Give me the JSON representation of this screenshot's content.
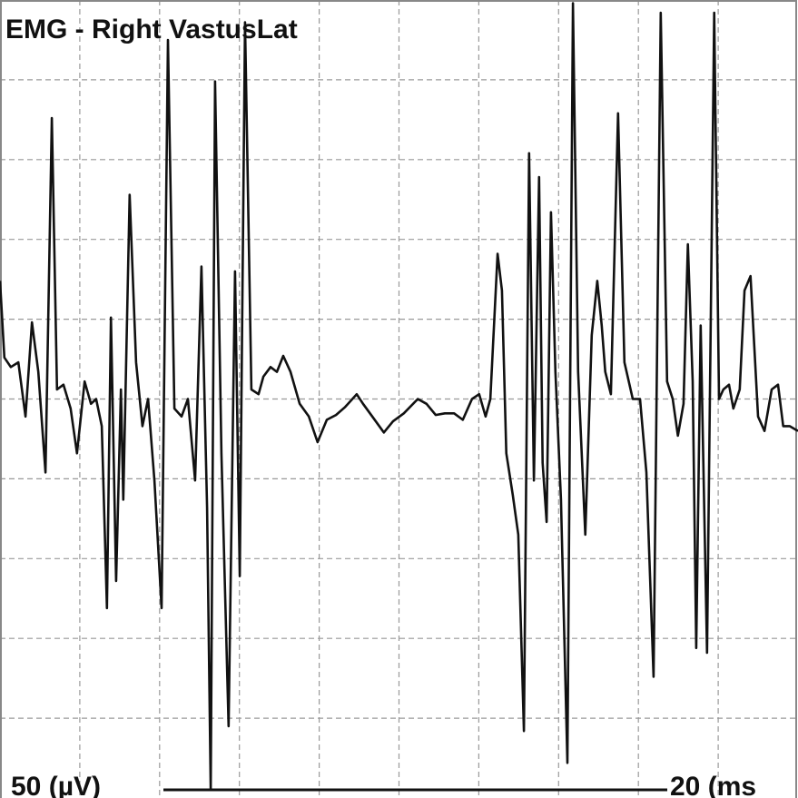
{
  "chart_data": {
    "type": "line",
    "title": "EMG - Right VastusLat",
    "y_scale_label": "50 (µV)",
    "x_scale_label": "20 (ms",
    "xlim": [
      0,
      200
    ],
    "ylim": [
      -250,
      250
    ],
    "xgrid": [
      20,
      40,
      60,
      80,
      100,
      120,
      140,
      160,
      180
    ],
    "ygrid": [
      -200,
      -150,
      -100,
      -50,
      0,
      50,
      100,
      150,
      200
    ],
    "grid": true,
    "series": [
      {
        "color": "#111111",
        "x": [
          0,
          1.1,
          2.7,
          4.6,
          6.4,
          8.0,
          9.6,
          11.4,
          13.0,
          14.3,
          15.9,
          17.7,
          19.3,
          21.2,
          22.8,
          24.1,
          25.5,
          26.8,
          27.8,
          29.1,
          30.3,
          30.9,
          32.5,
          34.1,
          35.7,
          37.1,
          38.7,
          40.5,
          42.1,
          43.7,
          45.5,
          47.1,
          48.9,
          50.5,
          51.9,
          52.8,
          53.9,
          55.5,
          57.3,
          58.9,
          60.1,
          61.4,
          63.0,
          64.8,
          66.0,
          67.8,
          69.4,
          71.0,
          72.8,
          75.1,
          77.4,
          79.6,
          81.9,
          84.2,
          86.5,
          89.4,
          91.0,
          93.3,
          96.2,
          98.5,
          101.2,
          104.7,
          106.9,
          109.2,
          111.5,
          113.8,
          116.0,
          118.3,
          120.1,
          121.7,
          122.9,
          124.7,
          125.8,
          126.9,
          128.5,
          129.9,
          131.3,
          132.6,
          133.8,
          135.1,
          136.0,
          137.0,
          138.1,
          139.2,
          140.6,
          142.2,
          143.6,
          144.9,
          146.7,
          148.3,
          149.7,
          150.8,
          151.7,
          153.1,
          154.9,
          156.5,
          158.6,
          160.4,
          162.0,
          163.8,
          165.6,
          167.2,
          168.6,
          169.9,
          171.3,
          172.4,
          173.6,
          174.5,
          175.6,
          177.2,
          179.0,
          180.2,
          181.3,
          182.7,
          183.8,
          185.4,
          186.6,
          188.1,
          190.0,
          191.6,
          193.4,
          195.0,
          196.3,
          197.9,
          200
        ],
        "values": [
          74,
          26,
          20,
          23,
          -11,
          48,
          17,
          -46,
          176,
          6,
          9,
          -6,
          -34,
          11,
          -3,
          0,
          -17,
          -131,
          51,
          -114,
          6,
          -63,
          128,
          23,
          -17,
          0,
          -51,
          -131,
          225,
          -6,
          -11,
          0,
          -51,
          83,
          -68,
          -245,
          199,
          -34,
          -205,
          80,
          -111,
          236,
          6,
          3,
          14,
          20,
          17,
          27,
          17,
          -3,
          -11,
          -27,
          -13,
          -10,
          -5,
          3,
          -3,
          -11,
          -21,
          -14,
          -9,
          0,
          -3,
          -10,
          -9,
          -9,
          -13,
          0,
          3,
          -11,
          0,
          91,
          68,
          -34,
          -60,
          -85,
          -208,
          154,
          -51,
          139,
          -40,
          -77,
          117,
          17,
          -63,
          -228,
          248,
          17,
          -85,
          40,
          74,
          46,
          17,
          3,
          179,
          23,
          0,
          0,
          -46,
          -174,
          242,
          11,
          0,
          -23,
          -3,
          97,
          11,
          -156,
          46,
          -159,
          242,
          0,
          6,
          9,
          -6,
          6,
          68,
          77,
          -11,
          -20,
          6,
          9,
          -17,
          -17,
          -20
        ]
      }
    ]
  }
}
